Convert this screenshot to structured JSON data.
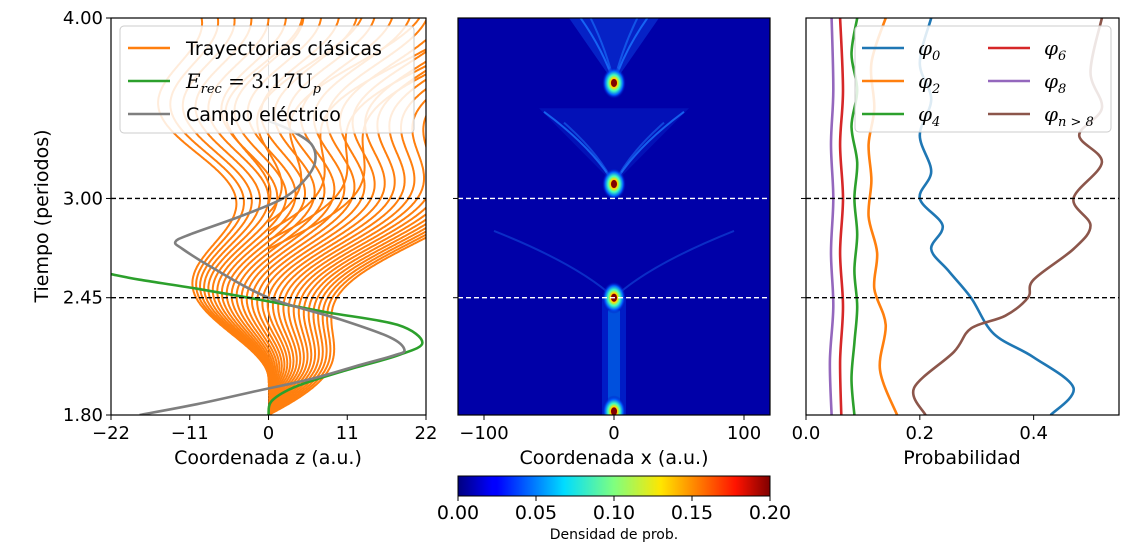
{
  "chart_data": [
    {
      "type": "line",
      "panel": "left",
      "ylabel": "Tiempo (periodos)",
      "xlabel": "Coordenada z (a.u.)",
      "xlim": [
        -22,
        22
      ],
      "ylim": [
        1.8,
        4.0
      ],
      "xticks": [
        "−22",
        "−11",
        "0",
        "11",
        "22"
      ],
      "xtick_values": [
        -22,
        -11,
        0,
        11,
        22
      ],
      "yticks": [
        "1.80",
        "2.45",
        "3.00",
        "4.00"
      ],
      "ytick_values": [
        1.8,
        2.45,
        3.0,
        4.0
      ],
      "hlines": [
        2.45,
        3.0
      ],
      "legend": {
        "position": "top-right",
        "entries": [
          {
            "label": "Trayectorias clásicas",
            "color": "#ff7f0e"
          },
          {
            "label_main": "E",
            "label_sub": "rec",
            "label_rest": " = 3.17U",
            "label_sub2": "p",
            "color": "#2ca02c"
          },
          {
            "label": "Campo eléctrico",
            "color": "#7f7f7f"
          }
        ]
      },
      "series": [
        {
          "name": "Trayectorias clásicas",
          "color": "#ff7f0e",
          "description": "family of electron trajectories born between t=1.80 and t≈2.5 periods, oscillating in z"
        },
        {
          "name": "E_rec = 3.17U_p",
          "color": "#2ca02c",
          "points": [
            [
              0,
              1.8
            ],
            [
              0.5,
              1.88
            ],
            [
              4,
              1.96
            ],
            [
              11,
              2.05
            ],
            [
              18,
              2.13
            ],
            [
              21.5,
              2.2
            ],
            [
              18,
              2.3
            ],
            [
              8,
              2.37
            ],
            [
              0,
              2.43
            ],
            [
              -10,
              2.5
            ],
            [
              -18,
              2.55
            ],
            [
              -22,
              2.58
            ]
          ]
        },
        {
          "name": "Campo eléctrico",
          "color": "#7f7f7f",
          "points": [
            [
              -18,
              1.8
            ],
            [
              -10,
              1.86
            ],
            [
              -2,
              1.93
            ],
            [
              6,
              2.0
            ],
            [
              13,
              2.08
            ],
            [
              17.5,
              2.13
            ],
            [
              19,
              2.16
            ],
            [
              17,
              2.23
            ],
            [
              10,
              2.33
            ],
            [
              0,
              2.45
            ],
            [
              -8,
              2.62
            ],
            [
              -12,
              2.72
            ],
            [
              -13,
              2.76
            ],
            [
              -11,
              2.8
            ],
            [
              -4,
              2.9
            ],
            [
              2,
              3.0
            ],
            [
              5,
              3.1
            ],
            [
              6.5,
              3.2
            ],
            [
              6,
              3.3
            ],
            [
              3,
              3.38
            ],
            [
              0,
              3.43
            ]
          ]
        }
      ]
    },
    {
      "type": "heatmap",
      "panel": "middle",
      "xlabel": "Coordenada x (a.u.)",
      "xlim": [
        -120,
        120
      ],
      "ylim": [
        1.8,
        4.0
      ],
      "xticks": [
        "−100",
        "0",
        "100"
      ],
      "xtick_values": [
        -100,
        0,
        100
      ],
      "hlines": [
        2.45,
        3.0
      ],
      "bright_spots_t": [
        1.82,
        2.45,
        3.08,
        3.64
      ],
      "colormap": "jet",
      "colorbar": {
        "label": "Densidad de prob.",
        "range": [
          0.0,
          0.2
        ],
        "ticks": [
          "0.00",
          "0.05",
          "0.10",
          "0.15",
          "0.20"
        ],
        "tick_values": [
          0.0,
          0.05,
          0.1,
          0.15,
          0.2
        ]
      }
    },
    {
      "type": "line",
      "panel": "right",
      "xlabel": "Probabilidad",
      "xlim": [
        0.0,
        0.55
      ],
      "ylim": [
        1.8,
        4.0
      ],
      "xticks": [
        "0.0",
        "0.2",
        "0.4"
      ],
      "xtick_values": [
        0.0,
        0.2,
        0.4
      ],
      "hlines": [
        2.45,
        3.0
      ],
      "legend": {
        "position": "top-right",
        "columns": 2,
        "entries": [
          {
            "sym": "φ",
            "sub": "0",
            "color": "#1f77b4"
          },
          {
            "sym": "φ",
            "sub": "2",
            "color": "#ff7f0e"
          },
          {
            "sym": "φ",
            "sub": "4",
            "color": "#2ca02c"
          },
          {
            "sym": "φ",
            "sub": "6",
            "color": "#d62728"
          },
          {
            "sym": "φ",
            "sub": "8",
            "color": "#9467bd"
          },
          {
            "sym": "φ",
            "sub": "n > 8",
            "color": "#8c564b"
          }
        ]
      },
      "series": [
        {
          "name": "φ0",
          "color": "#1f77b4",
          "points": [
            [
              0.43,
              1.8
            ],
            [
              0.47,
              1.95
            ],
            [
              0.4,
              2.12
            ],
            [
              0.33,
              2.25
            ],
            [
              0.29,
              2.45
            ],
            [
              0.25,
              2.6
            ],
            [
              0.22,
              2.72
            ],
            [
              0.24,
              2.85
            ],
            [
              0.2,
              3.0
            ],
            [
              0.22,
              3.15
            ],
            [
              0.2,
              3.35
            ],
            [
              0.22,
              3.55
            ],
            [
              0.2,
              3.75
            ],
            [
              0.22,
              4.0
            ]
          ]
        },
        {
          "name": "φ2",
          "color": "#ff7f0e",
          "points": [
            [
              0.16,
              1.8
            ],
            [
              0.13,
              2.05
            ],
            [
              0.14,
              2.3
            ],
            [
              0.12,
              2.5
            ],
            [
              0.125,
              2.7
            ],
            [
              0.11,
              2.9
            ],
            [
              0.115,
              3.1
            ],
            [
              0.11,
              3.3
            ],
            [
              0.12,
              3.5
            ],
            [
              0.115,
              3.75
            ],
            [
              0.14,
              4.0
            ]
          ]
        },
        {
          "name": "φ4",
          "color": "#2ca02c",
          "points": [
            [
              0.085,
              1.8
            ],
            [
              0.08,
              2.0
            ],
            [
              0.085,
              2.2
            ],
            [
              0.09,
              2.4
            ],
            [
              0.085,
              2.6
            ],
            [
              0.09,
              2.8
            ],
            [
              0.085,
              3.0
            ],
            [
              0.09,
              3.2
            ],
            [
              0.08,
              3.4
            ],
            [
              0.09,
              3.6
            ],
            [
              0.08,
              3.8
            ],
            [
              0.09,
              4.0
            ]
          ]
        },
        {
          "name": "φ6",
          "color": "#d62728",
          "points": [
            [
              0.062,
              1.8
            ],
            [
              0.06,
              2.1
            ],
            [
              0.065,
              2.4
            ],
            [
              0.06,
              2.7
            ],
            [
              0.065,
              3.0
            ],
            [
              0.06,
              3.3
            ],
            [
              0.065,
              3.6
            ],
            [
              0.06,
              4.0
            ]
          ]
        },
        {
          "name": "φ8",
          "color": "#9467bd",
          "points": [
            [
              0.045,
              1.8
            ],
            [
              0.042,
              2.1
            ],
            [
              0.048,
              2.4
            ],
            [
              0.044,
              2.7
            ],
            [
              0.048,
              3.0
            ],
            [
              0.044,
              3.3
            ],
            [
              0.048,
              3.6
            ],
            [
              0.045,
              4.0
            ]
          ]
        },
        {
          "name": "φn>8",
          "color": "#8c564b",
          "points": [
            [
              0.21,
              1.8
            ],
            [
              0.19,
              1.95
            ],
            [
              0.26,
              2.15
            ],
            [
              0.29,
              2.28
            ],
            [
              0.35,
              2.35
            ],
            [
              0.39,
              2.45
            ],
            [
              0.4,
              2.55
            ],
            [
              0.47,
              2.72
            ],
            [
              0.5,
              2.85
            ],
            [
              0.47,
              3.0
            ],
            [
              0.52,
              3.2
            ],
            [
              0.48,
              3.35
            ],
            [
              0.52,
              3.5
            ],
            [
              0.5,
              3.7
            ],
            [
              0.52,
              4.0
            ]
          ]
        }
      ]
    }
  ]
}
